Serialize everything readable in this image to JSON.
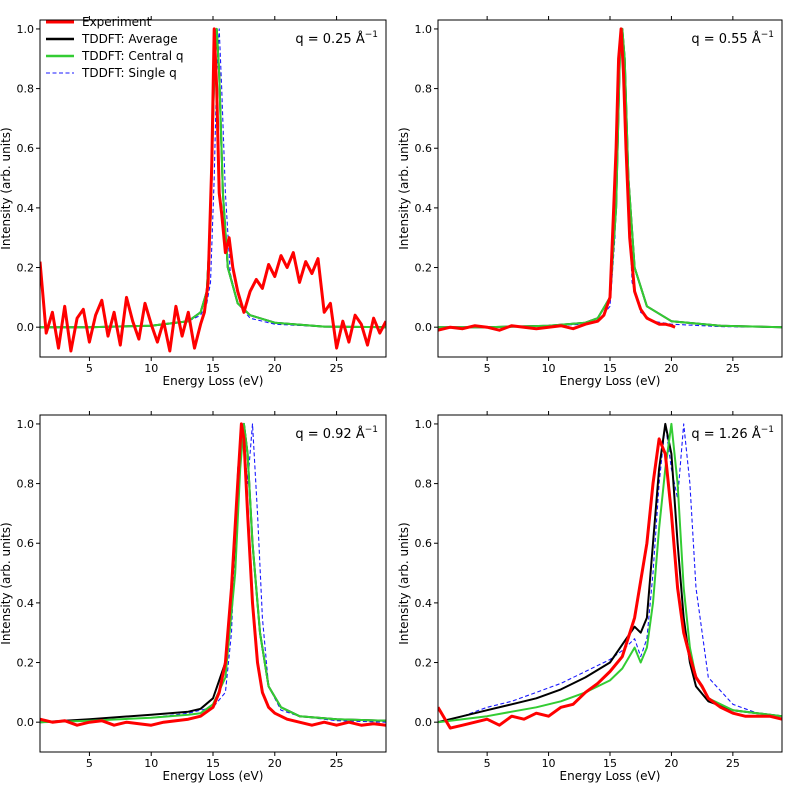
{
  "chart_data": [
    {
      "type": "line",
      "q_prefix": "q = 0.25 Å",
      "q_exp": "−1",
      "xlabel": "Energy Loss (eV)",
      "ylabel": "Intensity (arb. units)",
      "xlim": [
        1,
        29
      ],
      "ylim": [
        -0.1,
        1.03
      ],
      "xticks": [
        "5",
        "10",
        "15",
        "20",
        "25"
      ],
      "yticks": [
        "0.0",
        "0.2",
        "0.4",
        "0.6",
        "0.8",
        "1.0"
      ],
      "series": [
        {
          "name": "Experiment",
          "color": "#ff0000",
          "style": "solid",
          "x": [
            1,
            1.5,
            2,
            2.5,
            3,
            3.5,
            4,
            4.5,
            5,
            5.5,
            6,
            6.5,
            7,
            7.5,
            8,
            8.5,
            9,
            9.5,
            10,
            10.5,
            11,
            11.5,
            12,
            12.5,
            13,
            13.5,
            14,
            14.3,
            14.6,
            14.9,
            15.1,
            15.3,
            15.5,
            15.7,
            16,
            16.3,
            16.6,
            17,
            17.5,
            18,
            18.5,
            19,
            19.5,
            20,
            20.5,
            21,
            21.5,
            22,
            22.5,
            23,
            23.5,
            24,
            24.5,
            25,
            25.5,
            26,
            26.5,
            27,
            27.5,
            28,
            28.5,
            29
          ],
          "y": [
            0.22,
            -0.02,
            0.05,
            -0.07,
            0.07,
            -0.08,
            0.03,
            0.06,
            -0.05,
            0.04,
            0.09,
            -0.03,
            0.05,
            -0.06,
            0.1,
            0.02,
            -0.04,
            0.08,
            0.01,
            -0.05,
            0.02,
            -0.08,
            0.07,
            -0.03,
            0.05,
            -0.07,
            0.01,
            0.05,
            0.15,
            0.55,
            1.0,
            0.8,
            0.45,
            0.38,
            0.25,
            0.3,
            0.2,
            0.12,
            0.05,
            0.12,
            0.16,
            0.13,
            0.21,
            0.17,
            0.24,
            0.2,
            0.25,
            0.15,
            0.22,
            0.18,
            0.23,
            0.05,
            0.08,
            -0.07,
            0.02,
            -0.05,
            0.04,
            0.01,
            -0.06,
            0.03,
            -0.02,
            0.02
          ]
        },
        {
          "name": "TDDFT: Average",
          "color": "#000000",
          "style": "solid",
          "x": [
            1,
            5,
            10,
            13,
            14,
            14.5,
            14.8,
            15.1,
            15.3,
            15.5,
            15.8,
            16.2,
            17,
            18,
            20,
            24,
            29
          ],
          "y": [
            0.0,
            0.0,
            0.005,
            0.02,
            0.05,
            0.12,
            0.35,
            0.85,
            1.0,
            0.85,
            0.45,
            0.2,
            0.08,
            0.04,
            0.015,
            0.002,
            0.0
          ]
        },
        {
          "name": "TDDFT: Central q",
          "color": "#33cc33",
          "style": "solid",
          "x": [
            1,
            5,
            10,
            13,
            14,
            14.5,
            14.8,
            15.1,
            15.3,
            15.5,
            15.8,
            16.2,
            17,
            18,
            20,
            24,
            29
          ],
          "y": [
            0.0,
            0.0,
            0.005,
            0.02,
            0.05,
            0.12,
            0.35,
            0.85,
            1.0,
            0.85,
            0.45,
            0.2,
            0.08,
            0.04,
            0.015,
            0.002,
            0.0
          ]
        },
        {
          "name": "TDDFT: Single q",
          "color": "#1a1aff",
          "style": "dashed",
          "x": [
            1,
            5,
            10,
            13,
            14,
            14.5,
            14.8,
            15.1,
            15.3,
            15.5,
            15.7,
            16,
            16.4,
            17,
            18,
            20,
            24,
            29
          ],
          "y": [
            0.0,
            0.0,
            0.005,
            0.02,
            0.04,
            0.08,
            0.15,
            0.5,
            0.85,
            1.0,
            0.8,
            0.45,
            0.18,
            0.08,
            0.03,
            0.01,
            0.002,
            0.0
          ]
        }
      ]
    },
    {
      "type": "line",
      "q_prefix": "q = 0.55 Å",
      "q_exp": "−1",
      "xlabel": "Energy Loss (eV)",
      "ylabel": "Intensity (arb. units)",
      "xlim": [
        1,
        29
      ],
      "ylim": [
        -0.1,
        1.03
      ],
      "xticks": [
        "5",
        "10",
        "15",
        "20",
        "25"
      ],
      "yticks": [
        "0.0",
        "0.2",
        "0.4",
        "0.6",
        "0.8",
        "1.0"
      ],
      "series": [
        {
          "name": "Experiment",
          "color": "#ff0000",
          "style": "solid",
          "x": [
            1,
            2,
            3,
            4,
            5,
            6,
            7,
            8,
            9,
            10,
            11,
            12,
            13,
            14,
            14.5,
            15,
            15.3,
            15.5,
            15.7,
            15.9,
            16.1,
            16.3,
            16.6,
            17,
            17.5,
            18,
            18.5,
            19,
            19.5,
            20,
            20.3
          ],
          "y": [
            -0.01,
            0.0,
            -0.005,
            0.005,
            0.0,
            -0.01,
            0.005,
            0.0,
            -0.005,
            0.0,
            0.005,
            -0.005,
            0.01,
            0.02,
            0.04,
            0.1,
            0.4,
            0.6,
            0.9,
            1.0,
            0.85,
            0.6,
            0.3,
            0.12,
            0.06,
            0.03,
            0.02,
            0.01,
            0.01,
            0.005,
            0.0
          ]
        },
        {
          "name": "TDDFT: Average",
          "color": "#000000",
          "style": "solid",
          "x": [
            1,
            5,
            10,
            13,
            14,
            15,
            15.5,
            15.8,
            16,
            16.2,
            16.5,
            17,
            18,
            20,
            24,
            29
          ],
          "y": [
            0.0,
            0.0,
            0.005,
            0.015,
            0.03,
            0.1,
            0.4,
            0.9,
            1.0,
            0.9,
            0.5,
            0.2,
            0.07,
            0.02,
            0.005,
            0.0
          ]
        },
        {
          "name": "TDDFT: Central q",
          "color": "#33cc33",
          "style": "solid",
          "x": [
            1,
            5,
            10,
            13,
            14,
            15,
            15.5,
            15.8,
            16,
            16.2,
            16.5,
            17,
            18,
            20,
            24,
            29
          ],
          "y": [
            0.0,
            0.0,
            0.005,
            0.015,
            0.03,
            0.1,
            0.4,
            0.9,
            1.0,
            0.9,
            0.5,
            0.2,
            0.07,
            0.02,
            0.005,
            0.0
          ]
        },
        {
          "name": "TDDFT: Single q",
          "color": "#1a1aff",
          "style": "dashed",
          "x": [
            1,
            5,
            10,
            13,
            14,
            15,
            15.4,
            15.7,
            15.9,
            16.1,
            16.4,
            16.8,
            17.5,
            18.5,
            20,
            24,
            29
          ],
          "y": [
            0.0,
            0.0,
            0.005,
            0.01,
            0.02,
            0.07,
            0.3,
            0.8,
            1.0,
            0.9,
            0.5,
            0.15,
            0.05,
            0.02,
            0.01,
            0.002,
            0.0
          ]
        }
      ]
    },
    {
      "type": "line",
      "q_prefix": "q = 0.92 Å",
      "q_exp": "−1",
      "xlabel": "Energy Loss (eV)",
      "ylabel": "Intensity (arb. units)",
      "xlim": [
        1,
        29
      ],
      "ylim": [
        -0.1,
        1.03
      ],
      "xticks": [
        "5",
        "10",
        "15",
        "20",
        "25"
      ],
      "yticks": [
        "0.0",
        "0.2",
        "0.4",
        "0.6",
        "0.8",
        "1.0"
      ],
      "series": [
        {
          "name": "Experiment",
          "color": "#ff0000",
          "style": "solid",
          "x": [
            1,
            2,
            3,
            4,
            5,
            6,
            7,
            8,
            9,
            10,
            11,
            12,
            13,
            14,
            15,
            15.5,
            16,
            16.5,
            17,
            17.3,
            17.5,
            17.8,
            18.2,
            18.6,
            19,
            19.5,
            20,
            21,
            22,
            23,
            24,
            25,
            26,
            27,
            28,
            29
          ],
          "y": [
            0.01,
            0.0,
            0.005,
            -0.01,
            0.0,
            0.005,
            -0.01,
            0.0,
            -0.005,
            -0.01,
            0.0,
            0.005,
            0.01,
            0.02,
            0.05,
            0.1,
            0.2,
            0.45,
            0.8,
            1.0,
            0.95,
            0.7,
            0.4,
            0.2,
            0.1,
            0.05,
            0.03,
            0.01,
            0.0,
            -0.01,
            0.0,
            -0.01,
            0.0,
            -0.01,
            -0.005,
            -0.01
          ]
        },
        {
          "name": "TDDFT: Average",
          "color": "#000000",
          "style": "solid",
          "x": [
            1,
            5,
            10,
            13,
            14,
            15,
            16,
            16.8,
            17.2,
            17.5,
            17.8,
            18.2,
            18.8,
            19.5,
            20.5,
            22,
            25,
            29
          ],
          "y": [
            0.0,
            0.01,
            0.025,
            0.035,
            0.045,
            0.08,
            0.2,
            0.6,
            0.9,
            1.0,
            0.9,
            0.6,
            0.3,
            0.12,
            0.05,
            0.02,
            0.01,
            0.005
          ]
        },
        {
          "name": "TDDFT: Central q",
          "color": "#33cc33",
          "style": "solid",
          "x": [
            1,
            5,
            10,
            13,
            14,
            15,
            16,
            16.8,
            17.2,
            17.5,
            17.8,
            18.2,
            18.8,
            19.5,
            20.5,
            22,
            25,
            29
          ],
          "y": [
            0.0,
            0.005,
            0.015,
            0.025,
            0.03,
            0.06,
            0.15,
            0.5,
            0.85,
            1.0,
            0.9,
            0.6,
            0.3,
            0.12,
            0.05,
            0.02,
            0.01,
            0.005
          ]
        },
        {
          "name": "TDDFT: Single q",
          "color": "#1a1aff",
          "style": "dashed",
          "x": [
            1,
            5,
            10,
            13,
            14,
            15,
            16,
            16.5,
            17,
            17.4,
            17.8,
            18.2,
            18.6,
            19,
            19.5,
            20.5,
            22,
            25,
            29
          ],
          "y": [
            0.0,
            0.005,
            0.015,
            0.03,
            0.04,
            0.05,
            0.1,
            0.3,
            0.85,
            1.0,
            0.8,
            1.0,
            0.7,
            0.35,
            0.12,
            0.04,
            0.02,
            0.005,
            0.0
          ]
        }
      ]
    },
    {
      "type": "line",
      "q_prefix": "q = 1.26 Å",
      "q_exp": "−1",
      "xlabel": "Energy Loss (eV)",
      "ylabel": "Intensity (arb. units)",
      "xlim": [
        1,
        29
      ],
      "ylim": [
        -0.1,
        1.03
      ],
      "xticks": [
        "5",
        "10",
        "15",
        "20",
        "25"
      ],
      "yticks": [
        "0.0",
        "0.2",
        "0.4",
        "0.6",
        "0.8",
        "1.0"
      ],
      "series": [
        {
          "name": "Experiment",
          "color": "#ff0000",
          "style": "solid",
          "x": [
            1,
            2,
            3,
            4,
            5,
            6,
            7,
            8,
            9,
            10,
            11,
            12,
            13,
            14,
            15,
            16,
            17,
            18,
            18.5,
            19,
            19.5,
            20,
            20.5,
            21,
            21.5,
            22,
            22.5,
            23,
            24,
            25,
            26,
            27,
            28,
            29
          ],
          "y": [
            0.05,
            -0.02,
            -0.01,
            0.0,
            0.01,
            -0.01,
            0.02,
            0.01,
            0.03,
            0.02,
            0.05,
            0.06,
            0.1,
            0.13,
            0.17,
            0.22,
            0.35,
            0.6,
            0.8,
            0.95,
            0.9,
            0.7,
            0.45,
            0.3,
            0.22,
            0.15,
            0.12,
            0.08,
            0.05,
            0.03,
            0.02,
            0.02,
            0.02,
            0.01
          ]
        },
        {
          "name": "TDDFT: Average",
          "color": "#000000",
          "style": "solid",
          "x": [
            1,
            3,
            5,
            7,
            9,
            11,
            13,
            15,
            16,
            17,
            17.5,
            18,
            18.5,
            19,
            19.5,
            20,
            20.5,
            21,
            21.5,
            22,
            23,
            25,
            27,
            29
          ],
          "y": [
            0.0,
            0.02,
            0.04,
            0.06,
            0.08,
            0.11,
            0.15,
            0.2,
            0.26,
            0.32,
            0.3,
            0.35,
            0.6,
            0.85,
            1.0,
            0.9,
            0.6,
            0.35,
            0.2,
            0.12,
            0.07,
            0.04,
            0.03,
            0.02
          ]
        },
        {
          "name": "TDDFT: Central q",
          "color": "#33cc33",
          "style": "solid",
          "x": [
            1,
            3,
            5,
            7,
            9,
            11,
            13,
            15,
            16,
            17,
            17.5,
            18,
            18.5,
            19,
            19.5,
            20,
            20.5,
            21,
            21.5,
            22,
            23,
            25,
            27,
            29
          ],
          "y": [
            0.0,
            0.01,
            0.02,
            0.035,
            0.05,
            0.07,
            0.1,
            0.14,
            0.18,
            0.25,
            0.2,
            0.25,
            0.4,
            0.65,
            0.85,
            1.0,
            0.8,
            0.45,
            0.25,
            0.15,
            0.08,
            0.04,
            0.03,
            0.02
          ]
        },
        {
          "name": "TDDFT: Single q",
          "color": "#1a1aff",
          "style": "dashed",
          "x": [
            1,
            3,
            5,
            7,
            9,
            11,
            13,
            15,
            16,
            17,
            17.5,
            18,
            18.5,
            19,
            19.5,
            20,
            20.5,
            21,
            21.5,
            22,
            23,
            25,
            27,
            29
          ],
          "y": [
            0.0,
            0.02,
            0.05,
            0.07,
            0.1,
            0.13,
            0.17,
            0.21,
            0.24,
            0.28,
            0.22,
            0.28,
            0.5,
            0.8,
            1.0,
            0.85,
            0.75,
            1.0,
            0.8,
            0.45,
            0.15,
            0.06,
            0.03,
            0.02
          ]
        }
      ]
    }
  ]
}
